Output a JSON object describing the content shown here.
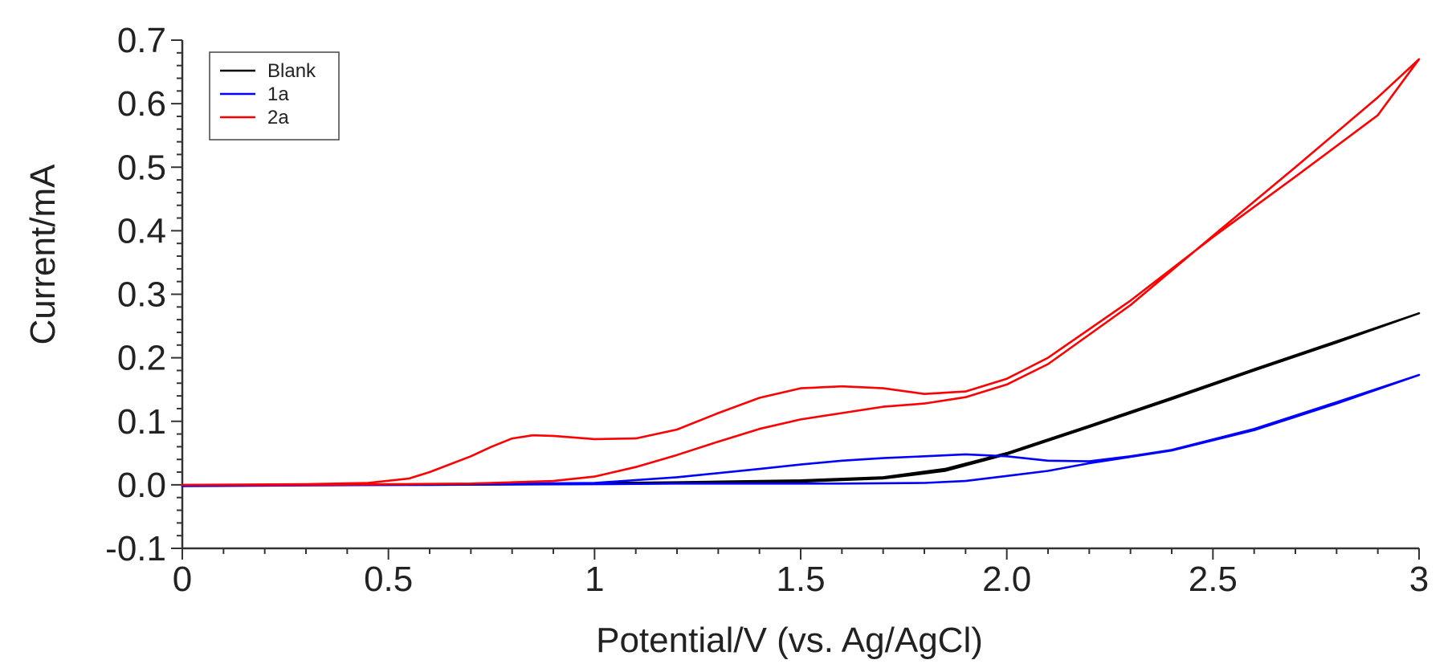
{
  "chart_data": {
    "type": "line",
    "title": "",
    "xlabel": "Potential/V (vs. Ag/AgCl)",
    "ylabel": "Current/mA",
    "xlim": [
      0,
      3
    ],
    "ylim": [
      -0.1,
      0.7
    ],
    "grid": false,
    "legend_position": "top-left",
    "x_ticks": [
      {
        "value": 0,
        "label": "0"
      },
      {
        "value": 0.5,
        "label": "0.5"
      },
      {
        "value": 1,
        "label": "1"
      },
      {
        "value": 1.5,
        "label": "1.5"
      },
      {
        "value": 2,
        "label": "2.0"
      },
      {
        "value": 2.5,
        "label": "2.5"
      },
      {
        "value": 3,
        "label": "3"
      }
    ],
    "y_ticks": [
      {
        "value": -0.1,
        "label": "-0.1"
      },
      {
        "value": 0,
        "label": "0.0"
      },
      {
        "value": 0.1,
        "label": "0.1"
      },
      {
        "value": 0.2,
        "label": "0.2"
      },
      {
        "value": 0.3,
        "label": "0.3"
      },
      {
        "value": 0.4,
        "label": "0.4"
      },
      {
        "value": 0.5,
        "label": "0.5"
      },
      {
        "value": 0.6,
        "label": "0.6"
      },
      {
        "value": 0.7,
        "label": "0.7"
      }
    ],
    "series": [
      {
        "name": "Blank",
        "color": "#000000",
        "x": [
          0.33,
          0.6,
          0.9,
          1.2,
          1.5,
          1.7,
          1.85,
          2.0,
          2.2,
          2.4,
          2.6,
          2.8,
          3.0,
          2.8,
          2.6,
          2.4,
          2.2,
          2.0,
          1.85,
          1.7,
          1.5,
          1.2,
          0.9,
          0.6,
          0.33
        ],
        "y": [
          0.0,
          0.001,
          0.002,
          0.004,
          0.007,
          0.012,
          0.025,
          0.05,
          0.093,
          0.137,
          0.182,
          0.226,
          0.27,
          0.224,
          0.18,
          0.135,
          0.091,
          0.048,
          0.022,
          0.01,
          0.005,
          0.003,
          0.001,
          0.0,
          0.0
        ]
      },
      {
        "name": "1a",
        "color": "#0000ff",
        "x": [
          0.0,
          0.5,
          1.0,
          1.2,
          1.4,
          1.5,
          1.6,
          1.7,
          1.8,
          1.9,
          2.0,
          2.1,
          2.2,
          2.3,
          2.4,
          2.6,
          2.8,
          3.0,
          2.8,
          2.6,
          2.4,
          2.2,
          2.1,
          2.0,
          1.9,
          1.8,
          1.6,
          1.4,
          1.2,
          1.0,
          0.5,
          0.0
        ],
        "y": [
          -0.002,
          0.0,
          0.003,
          0.012,
          0.025,
          0.032,
          0.038,
          0.042,
          0.045,
          0.048,
          0.045,
          0.038,
          0.037,
          0.045,
          0.055,
          0.088,
          0.13,
          0.173,
          0.128,
          0.086,
          0.054,
          0.034,
          0.022,
          0.014,
          0.006,
          0.003,
          0.002,
          0.002,
          0.002,
          0.001,
          0.0,
          -0.002
        ]
      },
      {
        "name": "2a",
        "color": "#ff0000",
        "x": [
          0.0,
          0.3,
          0.45,
          0.55,
          0.6,
          0.7,
          0.75,
          0.8,
          0.85,
          0.9,
          1.0,
          1.1,
          1.2,
          1.3,
          1.4,
          1.5,
          1.6,
          1.7,
          1.8,
          1.9,
          2.0,
          2.1,
          2.3,
          2.5,
          2.7,
          2.9,
          3.0,
          2.9,
          2.7,
          2.5,
          2.3,
          2.1,
          2.0,
          1.9,
          1.8,
          1.7,
          1.6,
          1.5,
          1.4,
          1.3,
          1.2,
          1.1,
          1.0,
          0.9,
          0.8,
          0.7,
          0.5,
          0.3,
          0.0
        ],
        "y": [
          0.0,
          0.001,
          0.003,
          0.01,
          0.02,
          0.045,
          0.06,
          0.073,
          0.078,
          0.077,
          0.072,
          0.073,
          0.087,
          0.113,
          0.137,
          0.152,
          0.155,
          0.152,
          0.143,
          0.147,
          0.167,
          0.2,
          0.29,
          0.39,
          0.485,
          0.582,
          0.67,
          0.61,
          0.5,
          0.392,
          0.283,
          0.19,
          0.158,
          0.138,
          0.128,
          0.123,
          0.113,
          0.103,
          0.088,
          0.068,
          0.047,
          0.028,
          0.013,
          0.006,
          0.004,
          0.002,
          0.001,
          0.0,
          0.0
        ]
      }
    ]
  }
}
